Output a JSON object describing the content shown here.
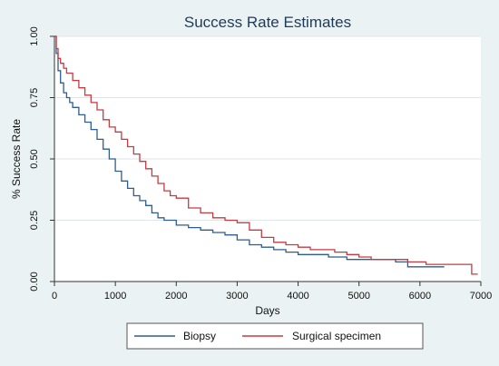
{
  "chart_data": {
    "type": "line",
    "title": "Success Rate Estimates",
    "xlabel": "Days",
    "ylabel": "% Success Rate",
    "xlim": [
      0,
      7000
    ],
    "ylim": [
      0,
      1
    ],
    "x_ticks": [
      0,
      1000,
      2000,
      3000,
      4000,
      5000,
      6000,
      7000
    ],
    "y_ticks": [
      "0.00",
      "0.25",
      "0.50",
      "0.75",
      "1.00"
    ],
    "grid": true,
    "legend_position": "bottom",
    "colors": {
      "background": "#eaf2f3",
      "plot_bg": "#ffffff",
      "grid": "#dfe6e8"
    },
    "series": [
      {
        "name": "Biopsy",
        "color": "#2f5e8e",
        "x": [
          0,
          30,
          60,
          100,
          150,
          200,
          250,
          300,
          400,
          500,
          600,
          700,
          800,
          900,
          1000,
          1100,
          1200,
          1300,
          1400,
          1500,
          1600,
          1700,
          1800,
          2000,
          2200,
          2400,
          2600,
          2800,
          3000,
          3200,
          3400,
          3600,
          3800,
          4000,
          4200,
          4500,
          4800,
          5000,
          5300,
          5600,
          5800,
          6000,
          6200,
          6400
        ],
        "y": [
          1.0,
          0.93,
          0.86,
          0.81,
          0.77,
          0.75,
          0.73,
          0.71,
          0.68,
          0.65,
          0.62,
          0.58,
          0.54,
          0.5,
          0.45,
          0.41,
          0.38,
          0.35,
          0.33,
          0.31,
          0.28,
          0.26,
          0.25,
          0.23,
          0.22,
          0.21,
          0.2,
          0.19,
          0.17,
          0.15,
          0.14,
          0.13,
          0.12,
          0.11,
          0.11,
          0.1,
          0.09,
          0.09,
          0.09,
          0.08,
          0.06,
          0.06,
          0.06,
          0.06
        ]
      },
      {
        "name": "Surgical specimen",
        "color": "#c33c43",
        "x": [
          0,
          30,
          60,
          100,
          150,
          200,
          300,
          400,
          500,
          600,
          700,
          800,
          900,
          1000,
          1100,
          1200,
          1300,
          1400,
          1500,
          1600,
          1700,
          1800,
          1900,
          2000,
          2200,
          2400,
          2600,
          2800,
          3000,
          3200,
          3400,
          3600,
          3800,
          4000,
          4200,
          4400,
          4600,
          4800,
          5000,
          5200,
          5500,
          5800,
          6100,
          6400,
          6800,
          6850,
          6950
        ],
        "y": [
          1.0,
          0.95,
          0.91,
          0.89,
          0.87,
          0.85,
          0.82,
          0.79,
          0.76,
          0.73,
          0.7,
          0.66,
          0.63,
          0.61,
          0.58,
          0.55,
          0.52,
          0.49,
          0.46,
          0.43,
          0.4,
          0.37,
          0.35,
          0.34,
          0.3,
          0.28,
          0.26,
          0.25,
          0.24,
          0.21,
          0.18,
          0.16,
          0.15,
          0.14,
          0.13,
          0.13,
          0.12,
          0.11,
          0.1,
          0.09,
          0.09,
          0.08,
          0.07,
          0.07,
          0.07,
          0.03,
          0.03
        ]
      }
    ]
  }
}
